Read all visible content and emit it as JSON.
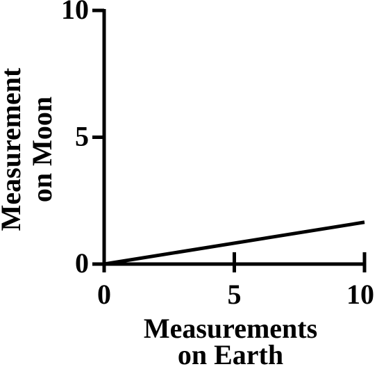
{
  "chart_data": {
    "type": "line",
    "xlabel": [
      "Measurements",
      "on Earth"
    ],
    "ylabel": [
      "Measurement",
      "on Moon"
    ],
    "x": [
      0,
      10
    ],
    "values": [
      0,
      1.65
    ],
    "color": "#000000",
    "xlim": [
      0,
      10
    ],
    "xticks": [
      0,
      5,
      10
    ],
    "ylim": [
      0,
      10
    ],
    "yticks": [
      0,
      5,
      10
    ]
  }
}
